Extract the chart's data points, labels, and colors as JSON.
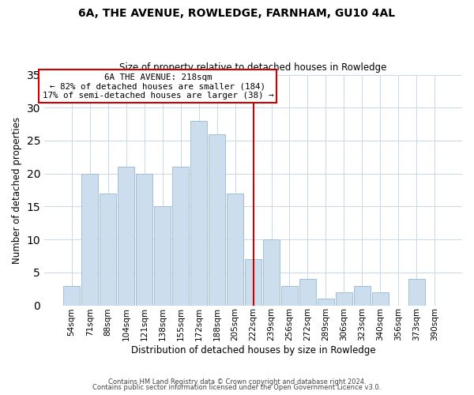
{
  "title": "6A, THE AVENUE, ROWLEDGE, FARNHAM, GU10 4AL",
  "subtitle": "Size of property relative to detached houses in Rowledge",
  "xlabel": "Distribution of detached houses by size in Rowledge",
  "ylabel": "Number of detached properties",
  "bar_labels": [
    "54sqm",
    "71sqm",
    "88sqm",
    "104sqm",
    "121sqm",
    "138sqm",
    "155sqm",
    "172sqm",
    "188sqm",
    "205sqm",
    "222sqm",
    "239sqm",
    "256sqm",
    "272sqm",
    "289sqm",
    "306sqm",
    "323sqm",
    "340sqm",
    "356sqm",
    "373sqm",
    "390sqm"
  ],
  "bar_values": [
    3,
    20,
    17,
    21,
    20,
    15,
    21,
    28,
    26,
    17,
    7,
    10,
    3,
    4,
    1,
    2,
    3,
    2,
    0,
    4,
    0
  ],
  "bar_color": "#ccdded",
  "bar_edge_color": "#a0bfd8",
  "vline_x_index": 10,
  "vline_color": "#cc0000",
  "annotation_line0": "6A THE AVENUE: 218sqm",
  "annotation_line1": "← 82% of detached houses are smaller (184)",
  "annotation_line2": "17% of semi-detached houses are larger (38) →",
  "annotation_box_edge": "#cc0000",
  "ylim": [
    0,
    35
  ],
  "yticks": [
    0,
    5,
    10,
    15,
    20,
    25,
    30,
    35
  ],
  "footer1": "Contains HM Land Registry data © Crown copyright and database right 2024.",
  "footer2": "Contains public sector information licensed under the Open Government Licence v3.0.",
  "bg_color": "#ffffff",
  "grid_color": "#c8d8e8"
}
